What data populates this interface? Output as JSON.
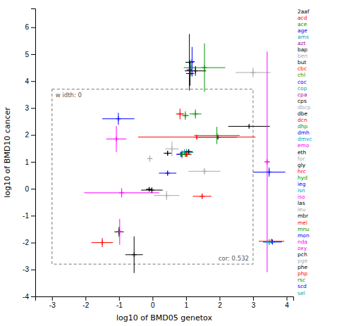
{
  "chart_data": {
    "type": "scatter",
    "xlabel": "log10 of BMD05 genetox",
    "ylabel": "log10 of BMD10 cancer",
    "xlim": [
      -3.5,
      4.2
    ],
    "ylim": [
      -4,
      6.7
    ],
    "xticks": [
      -3,
      -2,
      -1,
      0,
      1,
      2,
      3,
      4
    ],
    "yticks": [
      -4,
      -3,
      -2,
      -1,
      0,
      1,
      2,
      3,
      4,
      5,
      6
    ],
    "legend": "right",
    "marker": "plus",
    "box": {
      "x0": -3.0,
      "x1": 3.0,
      "y0": -2.8,
      "y1": 3.7
    },
    "annotations": [
      {
        "text": "w idth: 0"
      },
      {
        "text": "cor: 0.532"
      }
    ],
    "series": [
      {
        "name": "2aaf",
        "color": "#000000",
        "x": [
          1.1
        ],
        "values": [
          4.7
        ],
        "xerr": [
          0.12
        ],
        "yerr": [
          1.05
        ]
      },
      {
        "name": "acd",
        "color": "#FF0000",
        "x": [
          3.55
        ],
        "values": [
          -1.95
        ],
        "xerr": [
          0.38
        ],
        "yerr": [
          0.08
        ]
      },
      {
        "name": "ace",
        "color": "#009900",
        "x": [
          1.55
        ],
        "values": [
          4.5
        ],
        "xerr": [
          0.62
        ],
        "yerr": [
          0.9
        ]
      },
      {
        "name": "age",
        "color": "#0000FF",
        "x": [
          1.18
        ],
        "values": [
          4.72
        ],
        "xerr": [
          0.08
        ],
        "yerr": [
          0.55
        ]
      },
      {
        "name": "ams",
        "color": "#00AAAA",
        "x": [
          1.15
        ],
        "values": [
          4.5
        ],
        "xerr": [
          0.08
        ],
        "yerr": [
          0.3
        ]
      },
      {
        "name": "azt",
        "color": "#AA00AA",
        "x": [
          1.1
        ],
        "values": [
          4.42
        ],
        "xerr": [
          0.08
        ],
        "yerr": [
          0.22
        ]
      },
      {
        "name": "bap",
        "color": "#000000",
        "x": [
          1.28
        ],
        "values": [
          4.38
        ],
        "xerr": [
          0.32
        ],
        "yerr": [
          0.18
        ]
      },
      {
        "name": "ben",
        "color": "#AAAAAA",
        "x": [
          3.0
        ],
        "values": [
          4.32
        ],
        "xerr": [
          0.52
        ],
        "yerr": [
          0.18
        ]
      },
      {
        "name": "but",
        "color": "#000000",
        "x": [
          1.12
        ],
        "values": [
          4.28
        ],
        "xerr": [
          0.12
        ],
        "yerr": [
          0.45
        ]
      },
      {
        "name": "cbc",
        "color": "#FF0000",
        "x": [
          0.82
        ],
        "values": [
          2.78
        ],
        "xerr": [
          0.12
        ],
        "yerr": [
          0.2
        ]
      },
      {
        "name": "chl",
        "color": "#009900",
        "x": [
          0.98
        ],
        "values": [
          2.72
        ],
        "xerr": [
          0.1
        ],
        "yerr": [
          0.16
        ]
      },
      {
        "name": "coc",
        "color": "#0000FF",
        "x": [
          -1.02
        ],
        "values": [
          2.6
        ],
        "xerr": [
          0.48
        ],
        "yerr": [
          0.22
        ]
      },
      {
        "name": "cop",
        "color": "#00AAAA",
        "x": [
          1.02
        ],
        "values": [
          1.35
        ],
        "xerr": [
          0.2
        ],
        "yerr": [
          0.14
        ]
      },
      {
        "name": "cpa",
        "color": "#AA00AA",
        "x": [
          0.88
        ],
        "values": [
          1.28
        ],
        "xerr": [
          0.16
        ],
        "yerr": [
          0.14
        ]
      },
      {
        "name": "cps",
        "color": "#000000",
        "x": [
          2.88
        ],
        "values": [
          2.32
        ],
        "xerr": [
          0.62
        ],
        "yerr": [
          0.05
        ]
      },
      {
        "name": "dbcp",
        "color": "#AAAAAA",
        "x": [
          0.58
        ],
        "values": [
          1.48
        ],
        "xerr": [
          0.2
        ],
        "yerr": [
          0.28
        ]
      },
      {
        "name": "dbe",
        "color": "#000000",
        "x": [
          1.95
        ],
        "values": [
          1.92
        ],
        "xerr": [
          0.58
        ],
        "yerr": [
          0.06
        ]
      },
      {
        "name": "dcn",
        "color": "#FF0000",
        "x": [
          1.32
        ],
        "values": [
          1.92
        ],
        "xerr": [
          1.75
        ],
        "yerr": [
          0.07
        ]
      },
      {
        "name": "dhp",
        "color": "#009900",
        "x": [
          0.98
        ],
        "values": [
          1.28
        ],
        "xerr": [
          0.18
        ],
        "yerr": [
          0.09
        ]
      },
      {
        "name": "dmh",
        "color": "#0000FF",
        "x": [
          0.45
        ],
        "values": [
          0.58
        ],
        "xerr": [
          0.26
        ],
        "yerr": [
          0.09
        ]
      },
      {
        "name": "dmvc",
        "color": "#00AAAA",
        "x": [
          1.02
        ],
        "values": [
          1.28
        ],
        "xerr": [
          0.1
        ],
        "yerr": [
          0.07
        ]
      },
      {
        "name": "emo",
        "color": "#FF00FF",
        "x": [
          -0.92
        ],
        "values": [
          -0.15
        ],
        "xerr": [
          1.12
        ],
        "yerr": [
          0.17
        ]
      },
      {
        "name": "eth",
        "color": "#000000",
        "x": [
          -0.02
        ],
        "values": [
          -0.05
        ],
        "xerr": [
          0.32
        ],
        "yerr": [
          0.1
        ]
      },
      {
        "name": "for",
        "color": "#AAAAAA",
        "x": [
          -0.08
        ],
        "values": [
          1.12
        ],
        "xerr": [
          0.08
        ],
        "yerr": [
          0.12
        ]
      },
      {
        "name": "gly",
        "color": "#000000",
        "x": [
          -0.1
        ],
        "values": [
          -0.02
        ],
        "xerr": [
          0.1
        ],
        "yerr": [
          0.06
        ]
      },
      {
        "name": "hrc",
        "color": "#FF0000",
        "x": [
          1.48
        ],
        "values": [
          -0.28
        ],
        "xerr": [
          0.28
        ],
        "yerr": [
          0.1
        ]
      },
      {
        "name": "hyd",
        "color": "#009900",
        "x": [
          1.92
        ],
        "values": [
          1.98
        ],
        "xerr": [
          0.68
        ],
        "yerr": [
          0.32
        ]
      },
      {
        "name": "ieg",
        "color": "#0000FF",
        "x": [
          0.85
        ],
        "values": [
          1.28
        ],
        "xerr": [
          0.14
        ],
        "yerr": [
          0.09
        ]
      },
      {
        "name": "isn",
        "color": "#00AAAA",
        "x": [
          0.95
        ],
        "values": [
          1.38
        ],
        "xerr": [
          0.09
        ],
        "yerr": [
          0.09
        ]
      },
      {
        "name": "iso",
        "color": "#FF00FF",
        "x": [
          -1.08
        ],
        "values": [
          1.85
        ],
        "xerr": [
          0.3
        ],
        "yerr": [
          0.48
        ]
      },
      {
        "name": "las",
        "color": "#000000",
        "x": [
          0.45
        ],
        "values": [
          1.32
        ],
        "xerr": [
          0.12
        ],
        "yerr": [
          0.09
        ]
      },
      {
        "name": "leu",
        "color": "#AAAAAA",
        "x": [
          1.55
        ],
        "values": [
          0.65
        ],
        "xerr": [
          0.48
        ],
        "yerr": [
          0.12
        ]
      },
      {
        "name": "mbr",
        "color": "#000000",
        "x": [
          -1.0
        ],
        "values": [
          -1.6
        ],
        "xerr": [
          0.14
        ],
        "yerr": [
          0.18
        ]
      },
      {
        "name": "mel",
        "color": "#FF0000",
        "x": [
          -1.5
        ],
        "values": [
          -2.0
        ],
        "xerr": [
          0.32
        ],
        "yerr": [
          0.17
        ]
      },
      {
        "name": "mnu",
        "color": "#009900",
        "x": [
          1.28
        ],
        "values": [
          2.78
        ],
        "xerr": [
          0.18
        ],
        "yerr": [
          0.17
        ]
      },
      {
        "name": "mon",
        "color": "#0000FF",
        "x": [
          3.58
        ],
        "values": [
          -1.98
        ],
        "xerr": [
          0.28
        ],
        "yerr": [
          0.09
        ]
      },
      {
        "name": "nda",
        "color": "#FF00FF",
        "x": [
          3.42
        ],
        "values": [
          1.0
        ],
        "xerr": [
          0.08
        ],
        "yerr": [
          4.1
        ]
      },
      {
        "name": "oxy",
        "color": "#FF00FF",
        "x": [
          -0.98
        ],
        "values": [
          -1.6
        ],
        "xerr": [
          0.06
        ],
        "yerr": [
          0.48
        ]
      },
      {
        "name": "pch",
        "color": "#000000",
        "x": [
          -0.55
        ],
        "values": [
          -2.45
        ],
        "xerr": [
          0.26
        ],
        "yerr": [
          0.68
        ]
      },
      {
        "name": "pge",
        "color": "#AAAAAA",
        "x": [
          0.42
        ],
        "values": [
          -0.25
        ],
        "xerr": [
          0.38
        ],
        "yerr": [
          0.17
        ]
      },
      {
        "name": "phe",
        "color": "#000000",
        "x": [
          1.08
        ],
        "values": [
          1.38
        ],
        "xerr": [
          0.12
        ],
        "yerr": [
          0.09
        ]
      },
      {
        "name": "php",
        "color": "#FF0000",
        "x": [
          1.02
        ],
        "values": [
          1.28
        ],
        "xerr": [
          0.14
        ],
        "yerr": [
          0.09
        ]
      },
      {
        "name": "rsc",
        "color": "#009900",
        "x": [
          0.88
        ],
        "values": [
          1.28
        ],
        "xerr": [
          0.09
        ],
        "yerr": [
          0.07
        ]
      },
      {
        "name": "scd",
        "color": "#0000FF",
        "x": [
          3.48
        ],
        "values": [
          0.62
        ],
        "xerr": [
          0.48
        ],
        "yerr": [
          0.17
        ]
      },
      {
        "name": "sel",
        "color": "#00AAAA",
        "x": [
          3.48
        ],
        "values": [
          -1.98
        ],
        "xerr": [
          0.17
        ],
        "yerr": [
          0.11
        ]
      }
    ]
  }
}
